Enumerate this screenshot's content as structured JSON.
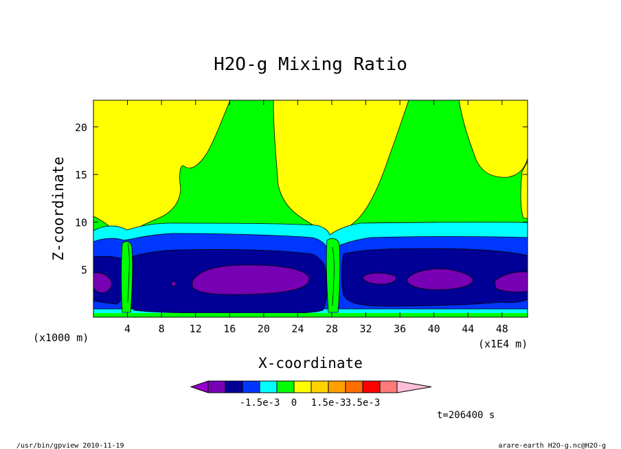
{
  "chart_data": {
    "type": "heatmap",
    "title": "H2O-g Mixing Ratio",
    "xlabel": "X-coordinate",
    "ylabel": "Z-coordinate",
    "x_unit_left": "(x1000 m)",
    "x_unit_right": "(x1E4 m)",
    "xlim": [
      0,
      51
    ],
    "ylim": [
      0,
      22.8
    ],
    "x_ticks": [
      "4",
      "8",
      "12",
      "16",
      "20",
      "24",
      "28",
      "32",
      "36",
      "40",
      "44",
      "48"
    ],
    "y_ticks": [
      "5",
      "10",
      "15",
      "20"
    ],
    "colorbar": {
      "colors": [
        "#9600c8",
        "#7800b4",
        "#000096",
        "#0037ff",
        "#00ffff",
        "#00ff00",
        "#ffff00",
        "#ffd200",
        "#ffa000",
        "#ff6e00",
        "#ff0000",
        "#ff7a7a",
        "#ffbfd8"
      ],
      "labels": [
        "-1.5e-3",
        "0",
        "1.5e-3",
        "3.5e-3"
      ]
    },
    "time_label": "t=206400 s"
  },
  "footer": {
    "left": "/usr/bin/gpview   2010-11-19",
    "right": "arare-earth_H2O-g.nc@H2O-g"
  }
}
